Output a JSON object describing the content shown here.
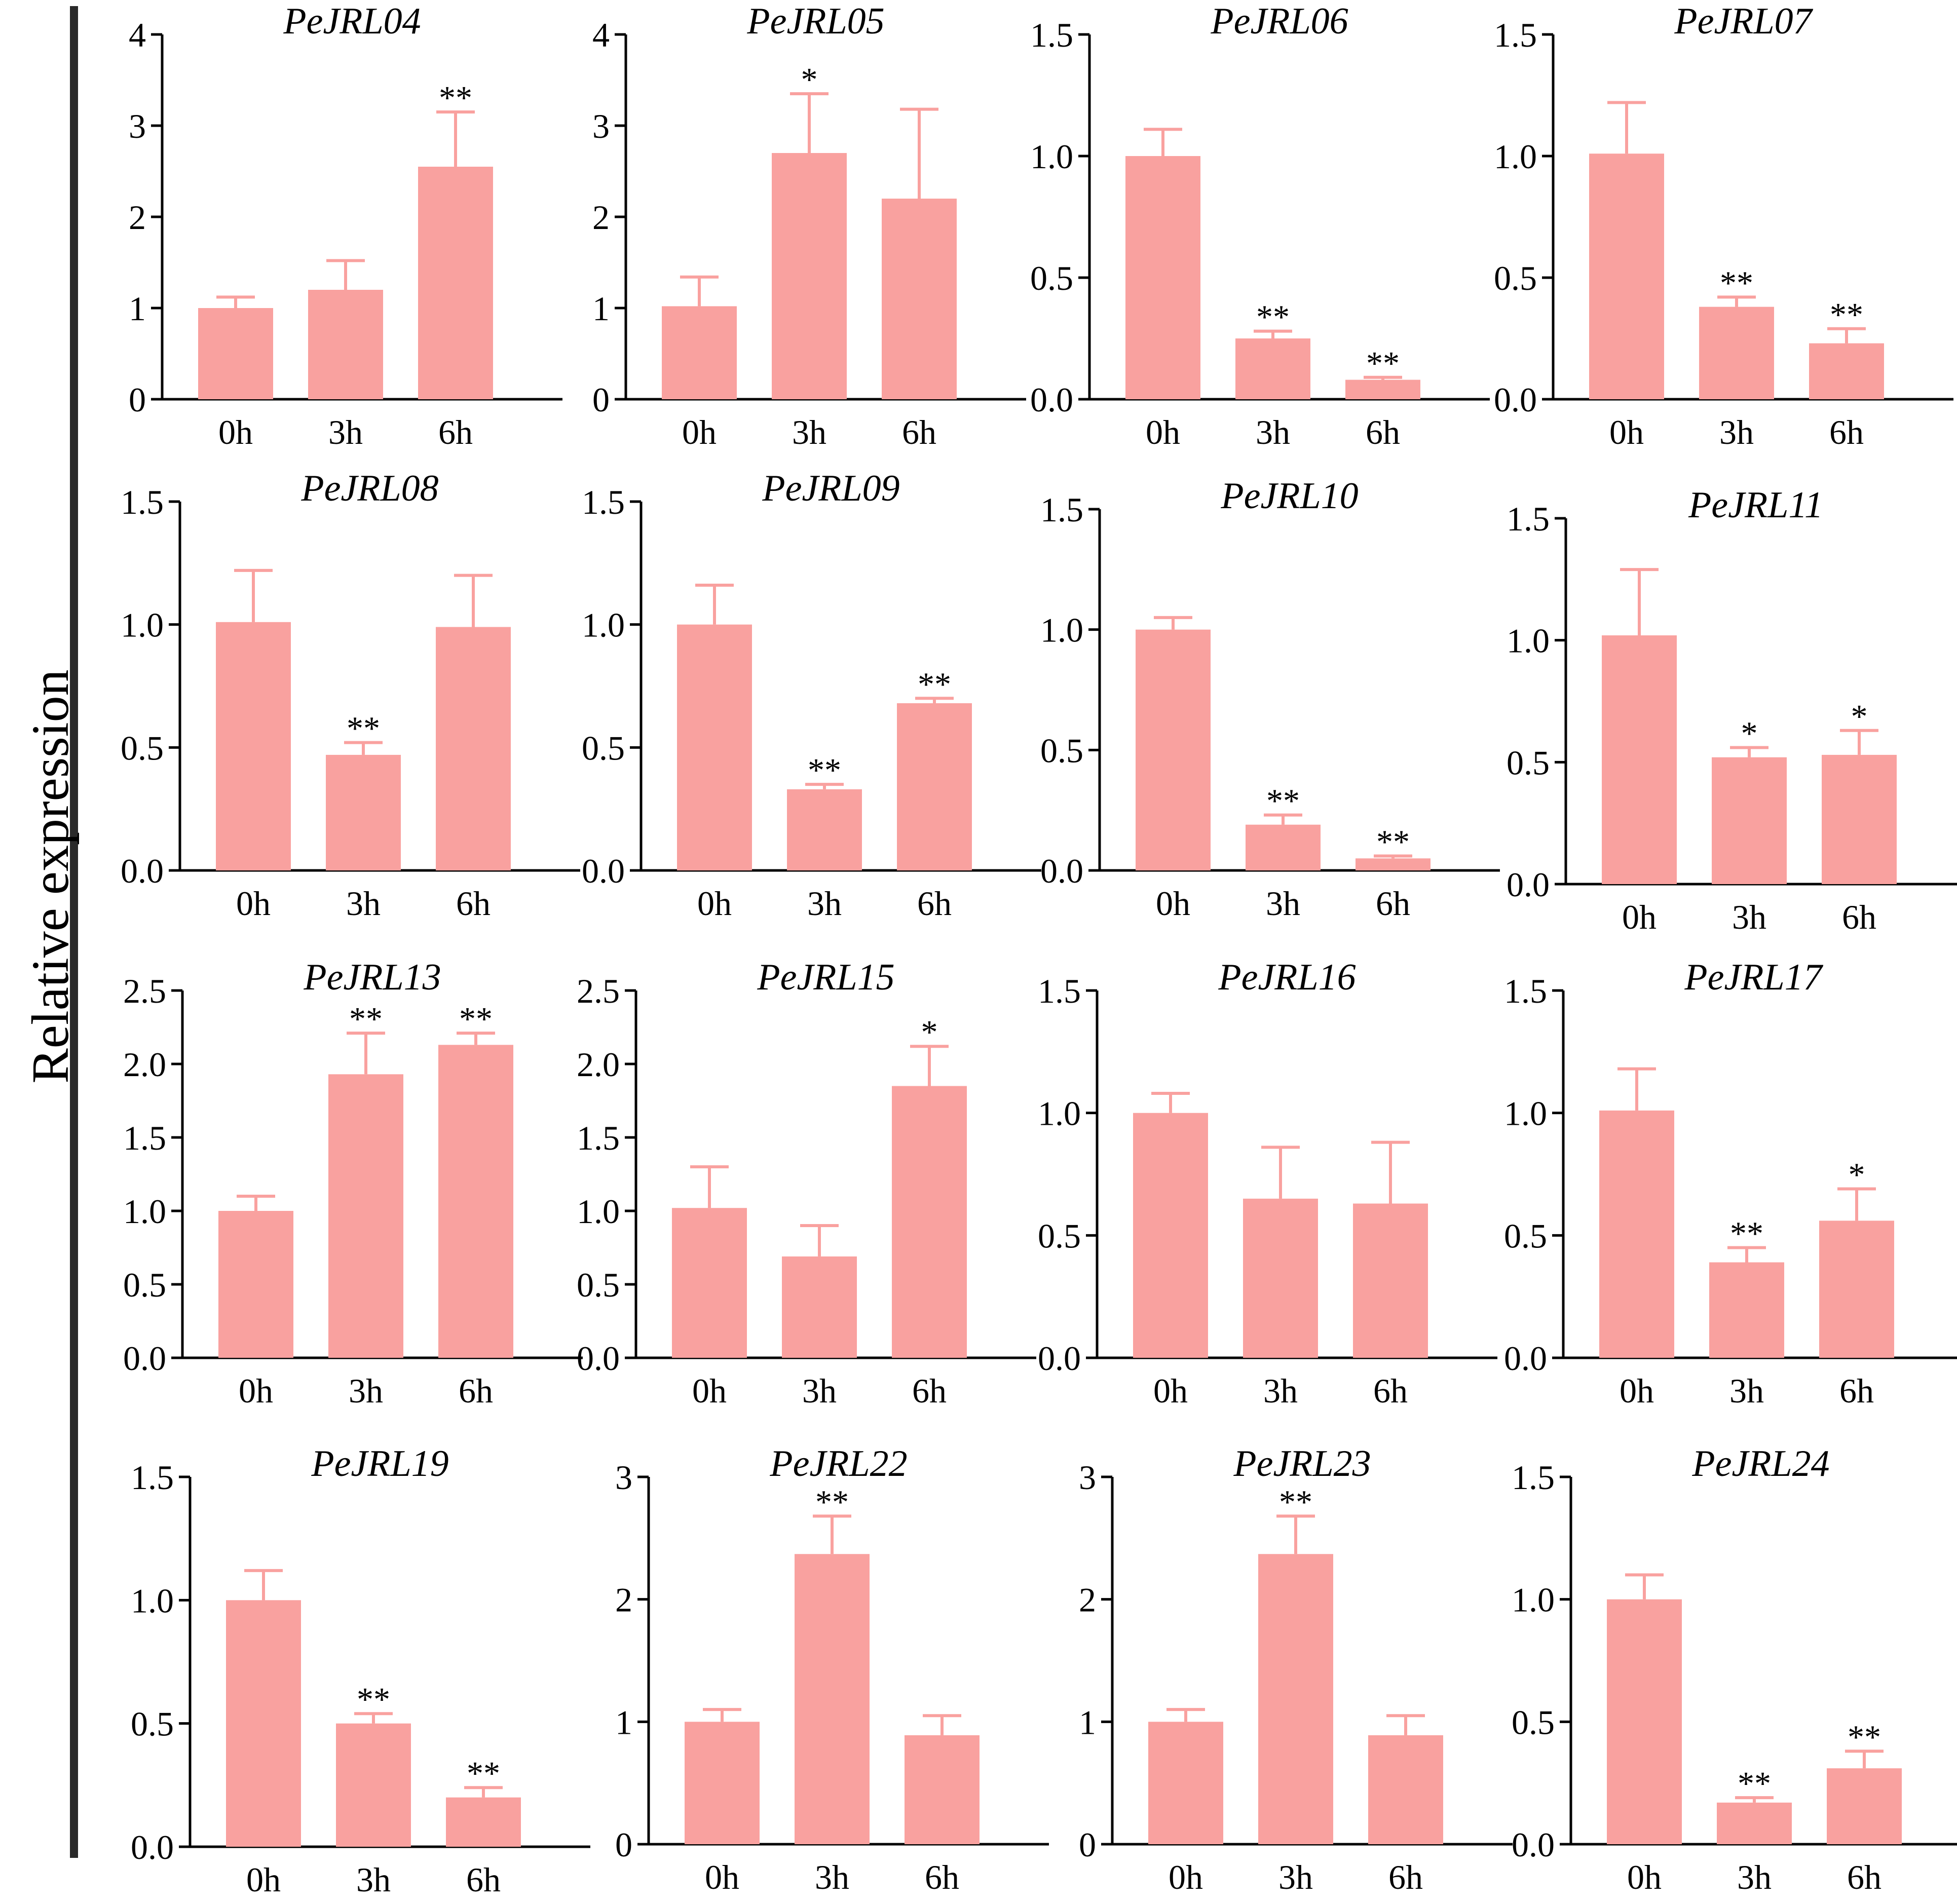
{
  "figure": {
    "ylabel": "Relative expression",
    "bar_color": "#f9a19f",
    "axis_color": "#000000",
    "rule_color": "#2a2a2a"
  },
  "chart_data": [
    {
      "type": "bar",
      "title": "PeJRL04",
      "categories": [
        "0h",
        "3h",
        "6h"
      ],
      "values": [
        1.0,
        1.2,
        2.55
      ],
      "errors": [
        0.12,
        0.32,
        0.6
      ],
      "significance": [
        "",
        "",
        "**"
      ],
      "ylim": [
        0,
        4
      ],
      "yticks": [
        0,
        1,
        2,
        3,
        4
      ],
      "ytick_labels": [
        "0",
        "1",
        "2",
        "3",
        "4"
      ]
    },
    {
      "type": "bar",
      "title": "PeJRL05",
      "categories": [
        "0h",
        "3h",
        "6h"
      ],
      "values": [
        1.02,
        2.7,
        2.2
      ],
      "errors": [
        0.32,
        0.65,
        0.98
      ],
      "significance": [
        "",
        "*",
        ""
      ],
      "ylim": [
        0,
        4
      ],
      "yticks": [
        0,
        1,
        2,
        3,
        4
      ],
      "ytick_labels": [
        "0",
        "1",
        "2",
        "3",
        "4"
      ]
    },
    {
      "type": "bar",
      "title": "PeJRL06",
      "categories": [
        "0h",
        "3h",
        "6h"
      ],
      "values": [
        1.0,
        0.25,
        0.08
      ],
      "errors": [
        0.11,
        0.03,
        0.01
      ],
      "significance": [
        "",
        "**",
        "**"
      ],
      "ylim": [
        0,
        1.5
      ],
      "yticks": [
        0,
        0.5,
        1,
        1.5
      ],
      "ytick_labels": [
        "0.0",
        "0.5",
        "1.0",
        "1.5"
      ]
    },
    {
      "type": "bar",
      "title": "PeJRL07",
      "categories": [
        "0h",
        "3h",
        "6h"
      ],
      "values": [
        1.01,
        0.38,
        0.23
      ],
      "errors": [
        0.21,
        0.04,
        0.06
      ],
      "significance": [
        "",
        "**",
        "**"
      ],
      "ylim": [
        0,
        1.5
      ],
      "yticks": [
        0,
        0.5,
        1,
        1.5
      ],
      "ytick_labels": [
        "0.0",
        "0.5",
        "1.0",
        "1.5"
      ]
    },
    {
      "type": "bar",
      "title": "PeJRL08",
      "categories": [
        "0h",
        "3h",
        "6h"
      ],
      "values": [
        1.01,
        0.47,
        0.99
      ],
      "errors": [
        0.21,
        0.05,
        0.21
      ],
      "significance": [
        "",
        "**",
        ""
      ],
      "ylim": [
        0,
        1.5
      ],
      "yticks": [
        0,
        0.5,
        1,
        1.5
      ],
      "ytick_labels": [
        "0.0",
        "0.5",
        "1.0",
        "1.5"
      ]
    },
    {
      "type": "bar",
      "title": "PeJRL09",
      "categories": [
        "0h",
        "3h",
        "6h"
      ],
      "values": [
        1.0,
        0.33,
        0.68
      ],
      "errors": [
        0.16,
        0.02,
        0.02
      ],
      "significance": [
        "",
        "**",
        "**"
      ],
      "ylim": [
        0,
        1.5
      ],
      "yticks": [
        0,
        0.5,
        1,
        1.5
      ],
      "ytick_labels": [
        "0.0",
        "0.5",
        "1.0",
        "1.5"
      ]
    },
    {
      "type": "bar",
      "title": "PeJRL10",
      "categories": [
        "0h",
        "3h",
        "6h"
      ],
      "values": [
        1.0,
        0.19,
        0.05
      ],
      "errors": [
        0.05,
        0.04,
        0.01
      ],
      "significance": [
        "",
        "**",
        "**"
      ],
      "ylim": [
        0,
        1.5
      ],
      "yticks": [
        0,
        0.5,
        1,
        1.5
      ],
      "ytick_labels": [
        "0.0",
        "0.5",
        "1.0",
        "1.5"
      ]
    },
    {
      "type": "bar",
      "title": "PeJRL11",
      "categories": [
        "0h",
        "3h",
        "6h"
      ],
      "values": [
        1.02,
        0.52,
        0.53
      ],
      "errors": [
        0.27,
        0.04,
        0.1
      ],
      "significance": [
        "",
        "*",
        "*"
      ],
      "ylim": [
        0,
        1.5
      ],
      "yticks": [
        0,
        0.5,
        1,
        1.5
      ],
      "ytick_labels": [
        "0.0",
        "0.5",
        "1.0",
        "1.5"
      ]
    },
    {
      "type": "bar",
      "title": "PeJRL13",
      "categories": [
        "0h",
        "3h",
        "6h"
      ],
      "values": [
        1.0,
        1.93,
        2.13
      ],
      "errors": [
        0.1,
        0.28,
        0.08
      ],
      "significance": [
        "",
        "**",
        "**"
      ],
      "ylim": [
        0,
        2.5
      ],
      "yticks": [
        0,
        0.5,
        1,
        1.5,
        2,
        2.5
      ],
      "ytick_labels": [
        "0.0",
        "0.5",
        "1.0",
        "1.5",
        "2.0",
        "2.5"
      ]
    },
    {
      "type": "bar",
      "title": "PeJRL15",
      "categories": [
        "0h",
        "3h",
        "6h"
      ],
      "values": [
        1.02,
        0.69,
        1.85
      ],
      "errors": [
        0.28,
        0.21,
        0.27
      ],
      "significance": [
        "",
        "",
        "*"
      ],
      "ylim": [
        0,
        2.5
      ],
      "yticks": [
        0,
        0.5,
        1,
        1.5,
        2,
        2.5
      ],
      "ytick_labels": [
        "0.0",
        "0.5",
        "1.0",
        "1.5",
        "2.0",
        "2.5"
      ]
    },
    {
      "type": "bar",
      "title": "PeJRL16",
      "categories": [
        "0h",
        "3h",
        "6h"
      ],
      "values": [
        1.0,
        0.65,
        0.63
      ],
      "errors": [
        0.08,
        0.21,
        0.25
      ],
      "significance": [
        "",
        "",
        ""
      ],
      "ylim": [
        0,
        1.5
      ],
      "yticks": [
        0,
        0.5,
        1,
        1.5
      ],
      "ytick_labels": [
        "0.0",
        "0.5",
        "1.0",
        "1.5"
      ]
    },
    {
      "type": "bar",
      "title": "PeJRL17",
      "categories": [
        "0h",
        "3h",
        "6h"
      ],
      "values": [
        1.01,
        0.39,
        0.56
      ],
      "errors": [
        0.17,
        0.06,
        0.13
      ],
      "significance": [
        "",
        "**",
        "*"
      ],
      "ylim": [
        0,
        1.5
      ],
      "yticks": [
        0,
        0.5,
        1,
        1.5
      ],
      "ytick_labels": [
        "0.0",
        "0.5",
        "1.0",
        "1.5"
      ]
    },
    {
      "type": "bar",
      "title": "PeJRL19",
      "categories": [
        "0h",
        "3h",
        "6h"
      ],
      "values": [
        1.0,
        0.5,
        0.2
      ],
      "errors": [
        0.12,
        0.04,
        0.04
      ],
      "significance": [
        "",
        "**",
        "**"
      ],
      "ylim": [
        0,
        1.5
      ],
      "yticks": [
        0,
        0.5,
        1,
        1.5
      ],
      "ytick_labels": [
        "0.0",
        "0.5",
        "1.0",
        "1.5"
      ]
    },
    {
      "type": "bar",
      "title": "PeJRL22",
      "categories": [
        "0h",
        "3h",
        "6h"
      ],
      "values": [
        1.0,
        2.37,
        0.89
      ],
      "errors": [
        0.1,
        0.31,
        0.16
      ],
      "significance": [
        "",
        "**",
        ""
      ],
      "ylim": [
        0,
        3
      ],
      "yticks": [
        0,
        1,
        2,
        3
      ],
      "ytick_labels": [
        "0",
        "1",
        "2",
        "3"
      ]
    },
    {
      "type": "bar",
      "title": "PeJRL23",
      "categories": [
        "0h",
        "3h",
        "6h"
      ],
      "values": [
        1.0,
        2.37,
        0.89
      ],
      "errors": [
        0.1,
        0.31,
        0.16
      ],
      "significance": [
        "",
        "**",
        ""
      ],
      "ylim": [
        0,
        3
      ],
      "yticks": [
        0,
        1,
        2,
        3
      ],
      "ytick_labels": [
        "0",
        "1",
        "2",
        "3"
      ]
    },
    {
      "type": "bar",
      "title": "PeJRL24",
      "categories": [
        "0h",
        "3h",
        "6h"
      ],
      "values": [
        1.0,
        0.17,
        0.31
      ],
      "errors": [
        0.1,
        0.02,
        0.07
      ],
      "significance": [
        "",
        "**",
        "**"
      ],
      "ylim": [
        0,
        1.5
      ],
      "yticks": [
        0,
        0.5,
        1,
        1.5
      ],
      "ytick_labels": [
        "0.0",
        "0.5",
        "1.0",
        "1.5"
      ]
    }
  ]
}
